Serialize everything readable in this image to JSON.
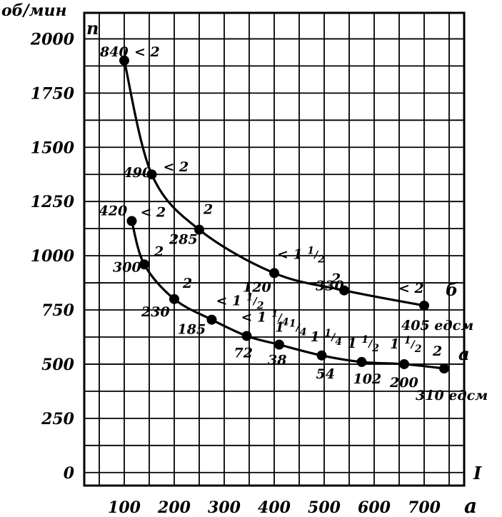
{
  "chart_data": {
    "type": "line",
    "ylabel_units": "об/мин",
    "ylabel": "n",
    "xlabel": "a",
    "region_label": "I",
    "y_ticks": [
      "0",
      "250",
      "500",
      "750",
      "1000",
      "1250",
      "1500",
      "1750",
      "2000"
    ],
    "x_ticks": [
      "100",
      "200",
      "300",
      "400",
      "500",
      "600",
      "700"
    ],
    "xlim": [
      20,
      780
    ],
    "ylim": [
      -60,
      2120
    ],
    "grid": true,
    "series": [
      {
        "name": "б",
        "end_label": "405 едсм",
        "points": [
          {
            "x": 100,
            "y": 1900,
            "label": "840",
            "note": "< 2"
          },
          {
            "x": 155,
            "y": 1375,
            "label": "490",
            "note": "< 2"
          },
          {
            "x": 250,
            "y": 1120,
            "label": "285",
            "note": "2"
          },
          {
            "x": 400,
            "y": 920,
            "label": "120",
            "note": "< 1 1/2"
          },
          {
            "x": 540,
            "y": 840,
            "label": "330",
            "note": "2"
          },
          {
            "x": 700,
            "y": 770,
            "label": "",
            "note": "< 2"
          }
        ]
      },
      {
        "name": "а",
        "end_label": "310 едсм",
        "points": [
          {
            "x": 115,
            "y": 1160,
            "label": "420",
            "note": "< 2"
          },
          {
            "x": 140,
            "y": 960,
            "label": "300",
            "note": "2"
          },
          {
            "x": 200,
            "y": 800,
            "label": "230",
            "note": "2"
          },
          {
            "x": 275,
            "y": 705,
            "label": "185",
            "note": "< 1 1/2"
          },
          {
            "x": 345,
            "y": 630,
            "label": "72",
            "note": "< 1 1/4"
          },
          {
            "x": 410,
            "y": 590,
            "label": "38",
            "note": "1 1/4"
          },
          {
            "x": 495,
            "y": 540,
            "label": "54",
            "note": "1 1/4"
          },
          {
            "x": 575,
            "y": 510,
            "label": "102",
            "note": "1 1/2"
          },
          {
            "x": 660,
            "y": 500,
            "label": "200",
            "note": "1 1/2"
          },
          {
            "x": 740,
            "y": 480,
            "label": "",
            "note": "2"
          }
        ]
      }
    ]
  }
}
